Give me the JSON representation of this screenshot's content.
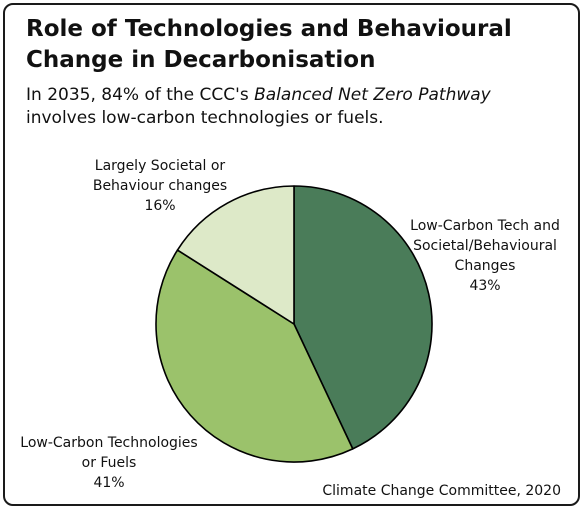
{
  "title_lines": [
    "Role of Technologies and Behavioural",
    "Change in Decarbonisation"
  ],
  "subtitle": {
    "before": "In 2035, 84% of the CCC's ",
    "emphasis": "Balanced Net Zero Pathway",
    "after": " involves low-carbon technologies or fuels."
  },
  "source": "Climate Change Committee, 2020",
  "chart_data": {
    "type": "pie",
    "slices": [
      {
        "label": [
          "Low-Carbon Tech and",
          "Societal/Behavioural",
          "Changes"
        ],
        "pct_label": "43%",
        "value": 43,
        "color": "#4a7c59"
      },
      {
        "label": [
          "Low-Carbon Technologies",
          "or Fuels"
        ],
        "pct_label": "41%",
        "value": 41,
        "color": "#9bc26b"
      },
      {
        "label": [
          "Largely Societal or",
          "Behaviour changes"
        ],
        "pct_label": "16%",
        "value": 16,
        "color": "#dde9c8"
      }
    ]
  }
}
